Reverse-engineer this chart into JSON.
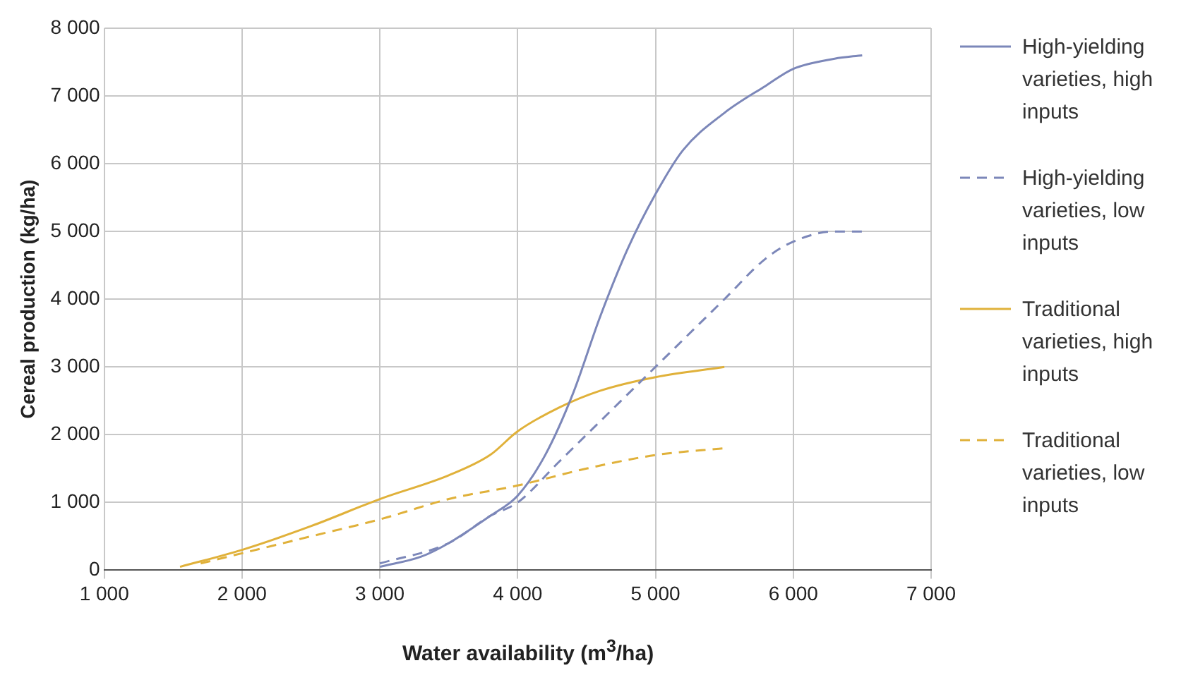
{
  "chart_data": {
    "type": "line",
    "xlabel": "Water availability (m$^{3}$/ha)",
    "ylabel": "Cereal production (kg/ha)",
    "xlim": [
      1000,
      7000
    ],
    "ylim": [
      0,
      8000
    ],
    "xticks": [
      {
        "value": 1000,
        "label": "1 000"
      },
      {
        "value": 2000,
        "label": "2 000"
      },
      {
        "value": 3000,
        "label": "3 000"
      },
      {
        "value": 4000,
        "label": "4 000"
      },
      {
        "value": 5000,
        "label": "5 000"
      },
      {
        "value": 6000,
        "label": "6 000"
      },
      {
        "value": 7000,
        "label": "7 000"
      }
    ],
    "yticks": [
      {
        "value": 0,
        "label": "0"
      },
      {
        "value": 1000,
        "label": "1 000"
      },
      {
        "value": 2000,
        "label": "2 000"
      },
      {
        "value": 3000,
        "label": "3 000"
      },
      {
        "value": 4000,
        "label": "4 000"
      },
      {
        "value": 5000,
        "label": "5 000"
      },
      {
        "value": 6000,
        "label": "6 000"
      },
      {
        "value": 7000,
        "label": "7 000"
      },
      {
        "value": 8000,
        "label": "8 000"
      }
    ],
    "grid": true,
    "legend": "right",
    "marker": "none",
    "series": [
      {
        "name": "High-yielding varieties, high inputs",
        "color": "#7c87b9",
        "line_style": "solid",
        "x": [
          3000,
          3300,
          3500,
          3800,
          4000,
          4200,
          4400,
          4600,
          4800,
          5000,
          5200,
          5500,
          5800,
          6000,
          6300,
          6500
        ],
        "values": [
          50,
          200,
          400,
          800,
          1100,
          1700,
          2600,
          3750,
          4750,
          5550,
          6200,
          6750,
          7150,
          7400,
          7550,
          7600
        ]
      },
      {
        "name": "High-yielding varieties, low inputs",
        "color": "#7c87b9",
        "line_style": "dashed",
        "x": [
          3000,
          3500,
          3800,
          4000,
          4300,
          4600,
          5000,
          5500,
          5800,
          6000,
          6300,
          6500
        ],
        "values": [
          100,
          400,
          800,
          1000,
          1600,
          2200,
          3000,
          4000,
          4600,
          4850,
          5000,
          5000
        ]
      },
      {
        "name": "Traditional varieties, high inputs",
        "color": "#e0b13a",
        "line_style": "solid",
        "x": [
          1550,
          2000,
          2500,
          3000,
          3500,
          3800,
          4000,
          4300,
          4600,
          5000,
          5500
        ],
        "values": [
          50,
          300,
          650,
          1050,
          1400,
          1700,
          2050,
          2400,
          2650,
          2850,
          3000
        ]
      },
      {
        "name": "Traditional varieties, low inputs",
        "color": "#e0b13a",
        "line_style": "dashed",
        "x": [
          1700,
          2000,
          2500,
          3000,
          3500,
          4000,
          4500,
          5000,
          5500
        ],
        "values": [
          100,
          250,
          500,
          750,
          1050,
          1250,
          1500,
          1700,
          1800
        ]
      }
    ]
  }
}
